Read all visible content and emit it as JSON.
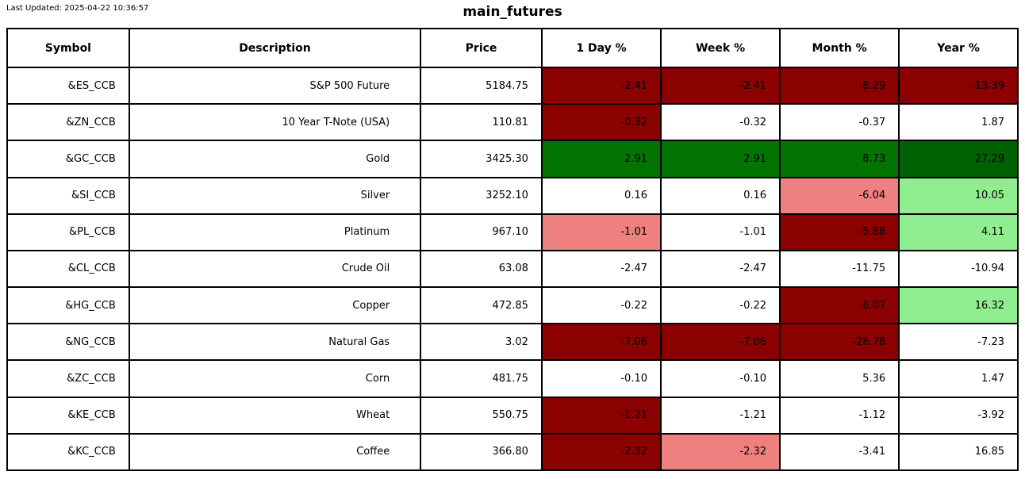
{
  "header": {
    "last_updated": "Last Updated: 2025-04-22 10:36:57",
    "title": "main_futures"
  },
  "colors": {
    "darkred": "#8B0000",
    "lightred": "#EE8080",
    "green": "#027402",
    "darkgreen": "#006102",
    "lightgreen": "#90EE90",
    "white": "#FFFFFF"
  },
  "chart_data": {
    "type": "table",
    "title": "main_futures",
    "columns": [
      "Symbol",
      "Description",
      "Price",
      "1 Day %",
      "Week %",
      "Month %",
      "Year %"
    ],
    "rows": [
      {
        "symbol": "&ES_CCB",
        "description": "S&P 500 Future",
        "price": "5184.75",
        "changes": [
          {
            "value": "-2.41",
            "bg": "darkred"
          },
          {
            "value": "-2.41",
            "bg": "darkred"
          },
          {
            "value": "-8.29",
            "bg": "darkred"
          },
          {
            "value": "-13.39",
            "bg": "darkred"
          }
        ]
      },
      {
        "symbol": "&ZN_CCB",
        "description": "10 Year T-Note (USA)",
        "price": "110.81",
        "changes": [
          {
            "value": "-0.32",
            "bg": "darkred"
          },
          {
            "value": "-0.32",
            "bg": "white"
          },
          {
            "value": "-0.37",
            "bg": "white"
          },
          {
            "value": "1.87",
            "bg": "white"
          }
        ]
      },
      {
        "symbol": "&GC_CCB",
        "description": "Gold",
        "price": "3425.30",
        "changes": [
          {
            "value": "2.91",
            "bg": "green"
          },
          {
            "value": "2.91",
            "bg": "green"
          },
          {
            "value": "8.73",
            "bg": "green"
          },
          {
            "value": "27.29",
            "bg": "darkgreen"
          }
        ]
      },
      {
        "symbol": "&SI_CCB",
        "description": "Silver",
        "price": "3252.10",
        "changes": [
          {
            "value": "0.16",
            "bg": "white"
          },
          {
            "value": "0.16",
            "bg": "white"
          },
          {
            "value": "-6.04",
            "bg": "lightred"
          },
          {
            "value": "10.05",
            "bg": "lightgreen"
          }
        ]
      },
      {
        "symbol": "&PL_CCB",
        "description": "Platinum",
        "price": "967.10",
        "changes": [
          {
            "value": "-1.01",
            "bg": "lightred"
          },
          {
            "value": "-1.01",
            "bg": "white"
          },
          {
            "value": "-5.88",
            "bg": "darkred"
          },
          {
            "value": "4.11",
            "bg": "lightgreen"
          }
        ]
      },
      {
        "symbol": "&CL_CCB",
        "description": "Crude Oil",
        "price": "63.08",
        "changes": [
          {
            "value": "-2.47",
            "bg": "white"
          },
          {
            "value": "-2.47",
            "bg": "white"
          },
          {
            "value": "-11.75",
            "bg": "white"
          },
          {
            "value": "-10.94",
            "bg": "white"
          }
        ]
      },
      {
        "symbol": "&HG_CCB",
        "description": "Copper",
        "price": "472.85",
        "changes": [
          {
            "value": "-0.22",
            "bg": "white"
          },
          {
            "value": "-0.22",
            "bg": "white"
          },
          {
            "value": "-6.07",
            "bg": "darkred"
          },
          {
            "value": "16.32",
            "bg": "lightgreen"
          }
        ]
      },
      {
        "symbol": "&NG_CCB",
        "description": "Natural Gas",
        "price": "3.02",
        "changes": [
          {
            "value": "-7.06",
            "bg": "darkred"
          },
          {
            "value": "-7.06",
            "bg": "darkred"
          },
          {
            "value": "-26.78",
            "bg": "darkred"
          },
          {
            "value": "-7.23",
            "bg": "white"
          }
        ]
      },
      {
        "symbol": "&ZC_CCB",
        "description": "Corn",
        "price": "481.75",
        "changes": [
          {
            "value": "-0.10",
            "bg": "white"
          },
          {
            "value": "-0.10",
            "bg": "white"
          },
          {
            "value": "5.36",
            "bg": "white"
          },
          {
            "value": "1.47",
            "bg": "white"
          }
        ]
      },
      {
        "symbol": "&KE_CCB",
        "description": "Wheat",
        "price": "550.75",
        "changes": [
          {
            "value": "-1.21",
            "bg": "darkred"
          },
          {
            "value": "-1.21",
            "bg": "white"
          },
          {
            "value": "-1.12",
            "bg": "white"
          },
          {
            "value": "-3.92",
            "bg": "white"
          }
        ]
      },
      {
        "symbol": "&KC_CCB",
        "description": "Coffee",
        "price": "366.80",
        "changes": [
          {
            "value": "-2.32",
            "bg": "darkred"
          },
          {
            "value": "-2.32",
            "bg": "lightred"
          },
          {
            "value": "-3.41",
            "bg": "white"
          },
          {
            "value": "16.85",
            "bg": "white"
          }
        ]
      }
    ]
  }
}
